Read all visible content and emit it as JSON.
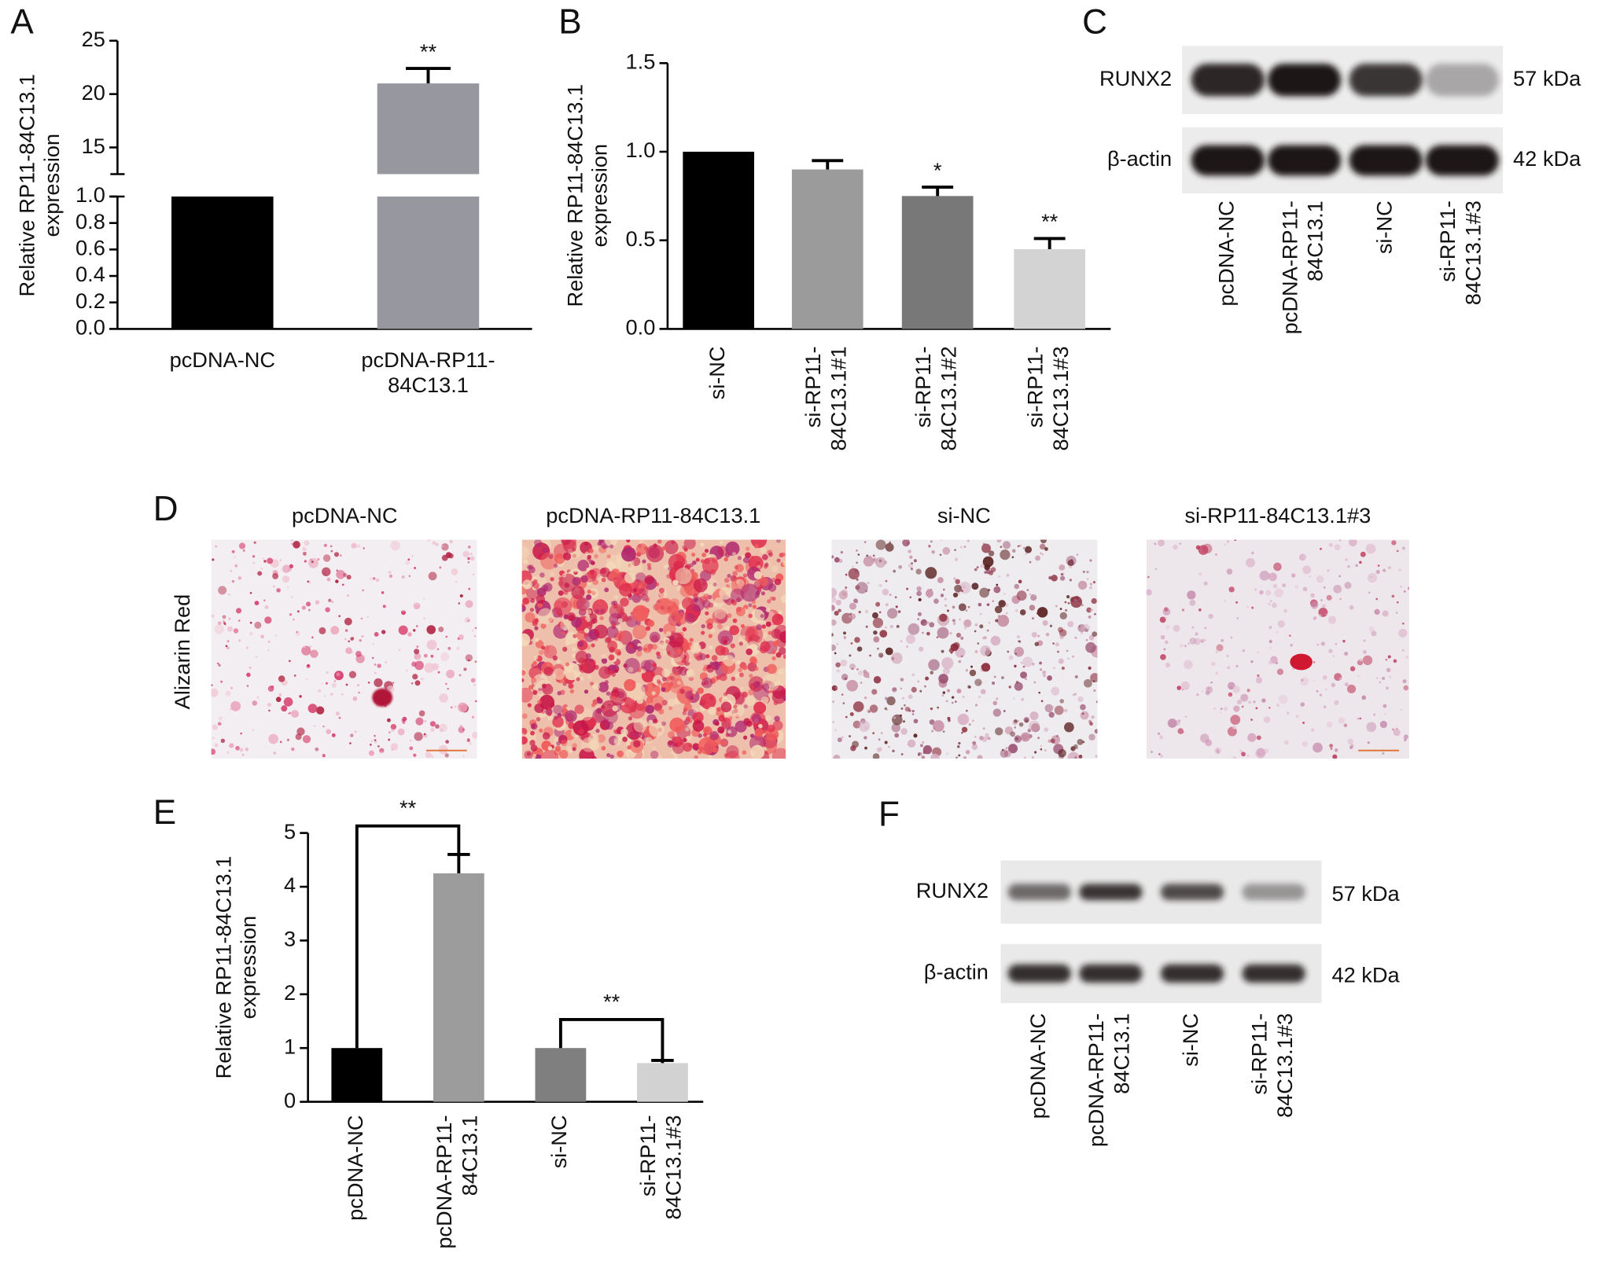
{
  "chart_data": [
    {
      "type": "bar",
      "panel": "A",
      "ylabel": "Relative RP11-84C13.1\nexpression",
      "categories": [
        "pcDNA-NC",
        "pcDNA-RP11-\n84C13.1"
      ],
      "values": [
        1,
        21
      ],
      "errors": [
        null,
        1.4
      ],
      "significance": [
        null,
        "**"
      ],
      "significance_style": "star",
      "colors": [
        "#000000",
        "#97979f"
      ],
      "ylim": [
        0,
        25
      ],
      "ybreak": [
        1,
        12.5
      ],
      "yticks": [
        {
          "value": 0,
          "label": "0.0"
        },
        {
          "value": 0.2,
          "label": "0.2"
        },
        {
          "value": 0.4,
          "label": "0.4"
        },
        {
          "value": 0.6,
          "label": "0.6"
        },
        {
          "value": 0.8,
          "label": "0.8"
        },
        {
          "value": 1,
          "label": "1.0"
        },
        15,
        20,
        25
      ]
    },
    {
      "type": "bar",
      "panel": "B",
      "ylabel": "Relative RP11-84C13.1\nexpression",
      "categories": [
        "si-NC",
        "si-RP11-\n84C13.1#1",
        "si-RP11-\n84C13.1#2",
        "si-RP11-\n84C13.1#3"
      ],
      "values": [
        1,
        0.9,
        0.75,
        0.45
      ],
      "errors": [
        null,
        0.05,
        0.05,
        0.06
      ],
      "significance": [
        null,
        null,
        "*",
        "**"
      ],
      "significance_style": "star",
      "colors": [
        "#000000",
        "#9b9b9b",
        "#787878",
        "#d3d3d3"
      ],
      "ylim": [
        0,
        1.5
      ],
      "yticks": [
        {
          "value": 0,
          "label": "0.0"
        },
        {
          "value": 0.5,
          "label": "0.5"
        },
        {
          "value": 1,
          "label": "1.0"
        },
        {
          "value": 1.5,
          "label": "1.5"
        }
      ]
    },
    {
      "type": "bar",
      "panel": "E",
      "ylabel": "Relative RP11-84C13.1\nexpression",
      "categories": [
        "pcDNA-NC",
        "pcDNA-RP11-\n84C13.1",
        "si-NC",
        "si-RP11-\n84C13.1#3"
      ],
      "values": [
        1,
        4.25,
        1,
        0.72
      ],
      "errors": [
        null,
        0.35,
        null,
        0.05
      ],
      "significance": [
        null,
        "**",
        null,
        "**"
      ],
      "significance_style": "bracket",
      "colors": [
        "#000000",
        "#9c9c9c",
        "#7f7f7f",
        "#d2d2d2"
      ],
      "ylim": [
        0,
        5
      ],
      "yticks": [
        0,
        1,
        2,
        3,
        4,
        5
      ]
    }
  ],
  "blots": [
    {
      "panel": "C",
      "rows": [
        {
          "protein": "RUNX2",
          "size": "57 kDa"
        },
        {
          "protein": "β-actin",
          "size": "42 kDa"
        }
      ],
      "lanes": [
        "pcDNA-NC",
        "pcDNA-RP11-\n84C13.1",
        "si-NC",
        "si-RP11-\n84C13.1#3"
      ]
    },
    {
      "panel": "F",
      "rows": [
        {
          "protein": "RUNX2",
          "size": "57 kDa"
        },
        {
          "protein": "β-actin",
          "size": "42 kDa"
        }
      ],
      "lanes": [
        "pcDNA-NC",
        "pcDNA-RP11-\n84C13.1",
        "si-NC",
        "si-RP11-\n84C13.1#3"
      ]
    }
  ],
  "staining": {
    "panel": "D",
    "stain": "Alizarin Red",
    "groups": [
      "pcDNA-NC",
      "pcDNA-RP11-84C13.1",
      "si-NC",
      "si-RP11-84C13.1#3"
    ]
  }
}
